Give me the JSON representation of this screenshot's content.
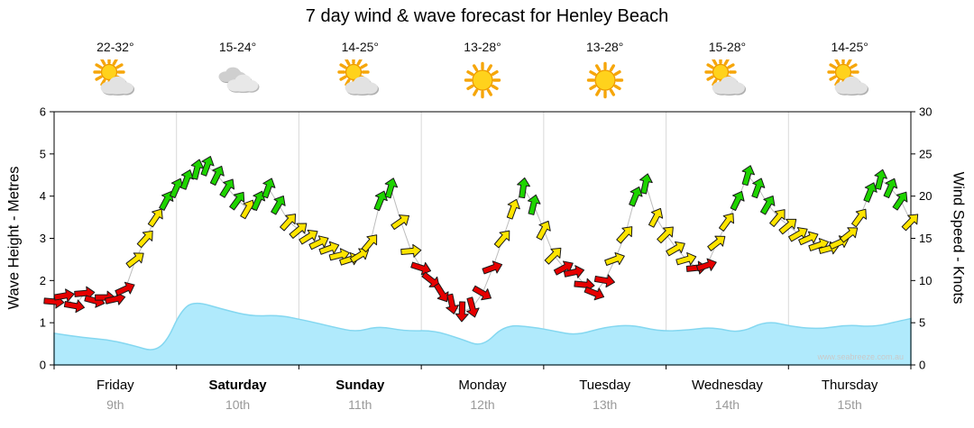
{
  "title": "7 day wind & wave forecast for Henley Beach",
  "watermark": "www.seabreeze.com.au",
  "days": [
    {
      "name": "Friday",
      "date": "9th",
      "temp": "22-32°",
      "icon": "sun-cloud",
      "weekend": false
    },
    {
      "name": "Saturday",
      "date": "10th",
      "temp": "15-24°",
      "icon": "cloudy",
      "weekend": true
    },
    {
      "name": "Sunday",
      "date": "11th",
      "temp": "14-25°",
      "icon": "sun-cloud",
      "weekend": true
    },
    {
      "name": "Monday",
      "date": "12th",
      "temp": "13-28°",
      "icon": "sunny",
      "weekend": false
    },
    {
      "name": "Tuesday",
      "date": "13th",
      "temp": "13-28°",
      "icon": "sunny",
      "weekend": false
    },
    {
      "name": "Wednesday",
      "date": "14th",
      "temp": "15-28°",
      "icon": "sun-cloud",
      "weekend": false
    },
    {
      "name": "Thursday",
      "date": "15th",
      "temp": "14-25°",
      "icon": "sun-cloud",
      "weekend": false
    }
  ],
  "axes": {
    "left_title": "Wave Height - Metres",
    "right_title": "Wind Speed - Knots",
    "left_ticks": [
      0,
      1,
      2,
      3,
      4,
      5,
      6
    ],
    "right_ticks": [
      0,
      5,
      10,
      15,
      20,
      25,
      30
    ]
  },
  "colors": {
    "wave_fill": "#b0eafc",
    "wave_stroke": "#84d7f0",
    "arrow_red": "#e60000",
    "arrow_yellow": "#ffe400",
    "arrow_green": "#1ed400",
    "arrow_outline": "#1a1a1a",
    "grid": "#d9d9d9",
    "axis": "#000000"
  },
  "chart_data": {
    "type": "mixed",
    "title": "7 day wind & wave forecast for Henley Beach",
    "x_axis": {
      "unit": "days",
      "categories": [
        "Friday 9th",
        "Saturday 10th",
        "Sunday 11th",
        "Monday 12th",
        "Tuesday 13th",
        "Wednesday 14th",
        "Thursday 15th"
      ]
    },
    "series": [
      {
        "name": "Wave Height",
        "type": "area",
        "unit": "m",
        "axis": "left",
        "ylim": [
          0,
          6
        ],
        "x": [
          0,
          0.22,
          0.44,
          0.66,
          0.81,
          0.92,
          1.03,
          1.14,
          1.4,
          1.62,
          1.84,
          2.06,
          2.28,
          2.47,
          2.65,
          2.87,
          3.1,
          3.32,
          3.5,
          3.68,
          3.91,
          4.09,
          4.27,
          4.5,
          4.72,
          4.94,
          5.16,
          5.38,
          5.6,
          5.82,
          6.04,
          6.26,
          6.48,
          6.7,
          6.92,
          7
        ],
        "values": [
          0.75,
          0.65,
          0.6,
          0.45,
          0.32,
          0.55,
          1.25,
          1.52,
          1.3,
          1.15,
          1.18,
          1.05,
          0.9,
          0.78,
          0.92,
          0.8,
          0.82,
          0.62,
          0.42,
          0.95,
          0.9,
          0.8,
          0.7,
          0.9,
          0.95,
          0.8,
          0.82,
          0.9,
          0.75,
          1.05,
          0.9,
          0.85,
          0.95,
          0.9,
          1.05,
          1.1
        ]
      },
      {
        "name": "Wind Speed",
        "type": "wind-arrows",
        "unit": "knots",
        "axis": "right",
        "ylim": [
          0,
          30
        ],
        "color_rule": {
          "red_below_knots": 12,
          "yellow_range_knots": "12-19",
          "green_from_knots": 19
        },
        "x": [
          0,
          0.083,
          0.167,
          0.25,
          0.333,
          0.417,
          0.5,
          0.583,
          0.667,
          0.75,
          0.833,
          0.917,
          1,
          1.083,
          1.167,
          1.25,
          1.333,
          1.417,
          1.5,
          1.583,
          1.667,
          1.75,
          1.833,
          1.917,
          2,
          2.083,
          2.167,
          2.25,
          2.333,
          2.417,
          2.5,
          2.583,
          2.667,
          2.75,
          2.833,
          2.917,
          3,
          3.083,
          3.167,
          3.25,
          3.333,
          3.417,
          3.5,
          3.583,
          3.667,
          3.75,
          3.833,
          3.917,
          4,
          4.083,
          4.167,
          4.25,
          4.333,
          4.417,
          4.5,
          4.583,
          4.667,
          4.75,
          4.833,
          4.917,
          5,
          5.083,
          5.167,
          5.25,
          5.333,
          5.417,
          5.5,
          5.583,
          5.667,
          5.75,
          5.833,
          5.917,
          6,
          6.083,
          6.167,
          6.25,
          6.333,
          6.417,
          6.5,
          6.583,
          6.667,
          6.75,
          6.833,
          6.917,
          7
        ],
        "values": [
          7.5,
          8.2,
          7,
          8.5,
          7.6,
          8,
          7.8,
          9,
          12.5,
          15,
          17.5,
          19.5,
          21,
          22,
          23.2,
          23.6,
          22.5,
          21,
          19.5,
          18.5,
          19.5,
          21,
          19,
          17,
          16,
          15.2,
          14.5,
          13.8,
          13,
          12.5,
          13,
          14.5,
          19.5,
          21,
          17,
          13.5,
          11.5,
          10,
          8.5,
          7.2,
          6.3,
          6.8,
          8.5,
          11.5,
          15,
          18.5,
          21,
          19,
          16,
          13,
          11.5,
          11,
          9.5,
          8.5,
          10,
          12.5,
          15.5,
          20,
          21.5,
          17.5,
          15.5,
          13.8,
          12.5,
          11.5,
          11.8,
          14.5,
          17,
          19.5,
          22.5,
          21,
          19,
          17.5,
          16.5,
          15.5,
          15,
          14.2,
          13.8,
          14.5,
          15.5,
          17.5,
          20.5,
          22,
          21,
          19.5,
          17
        ],
        "direction_deg": [
          95,
          80,
          100,
          85,
          105,
          90,
          78,
          65,
          52,
          42,
          34,
          28,
          24,
          20,
          14,
          20,
          26,
          32,
          36,
          30,
          24,
          20,
          30,
          42,
          50,
          58,
          64,
          70,
          76,
          72,
          58,
          40,
          22,
          16,
          55,
          85,
          108,
          128,
          148,
          168,
          182,
          165,
          120,
          70,
          40,
          20,
          8,
          14,
          28,
          45,
          62,
          78,
          95,
          112,
          100,
          70,
          42,
          22,
          12,
          28,
          45,
          60,
          74,
          84,
          72,
          52,
          36,
          26,
          16,
          20,
          30,
          40,
          50,
          60,
          66,
          71,
          75,
          66,
          52,
          36,
          22,
          14,
          24,
          34,
          44
        ]
      }
    ]
  }
}
